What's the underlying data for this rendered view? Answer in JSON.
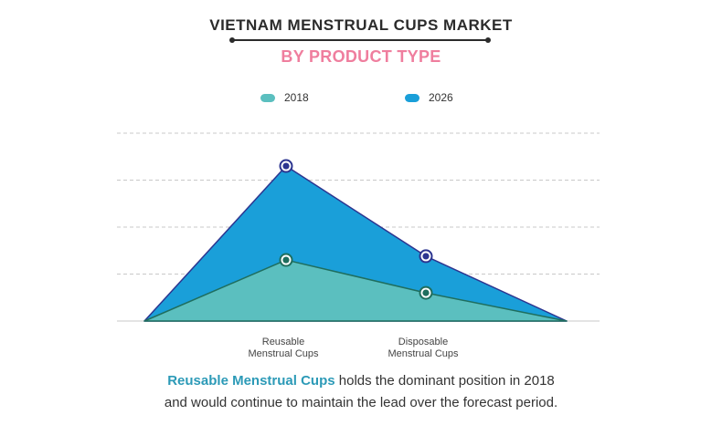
{
  "header": {
    "title": "VIETNAM MENSTRUAL CUPS MARKET",
    "subtitle": "BY PRODUCT TYPE"
  },
  "caption": {
    "highlight": "Reusable Menstrual Cups",
    "line1_rest": " holds the dominant position in 2018",
    "line2": "and would continue to maintain the lead over the forecast period."
  },
  "chart_data": {
    "type": "area",
    "categories": [
      "Reusable Menstrual Cups",
      "Disposable Menstrual Cups"
    ],
    "category_lines": [
      [
        "Reusable",
        "Menstrual Cups"
      ],
      [
        "Disposable",
        "Menstrual Cups"
      ]
    ],
    "series": [
      {
        "name": "2018",
        "values": [
          65,
          30
        ],
        "color": "#5bbfbf",
        "marker_color": "#1f6e5e"
      },
      {
        "name": "2026",
        "values": [
          165,
          69
        ],
        "color": "#1a9fd9",
        "marker_color": "#2c3590"
      }
    ],
    "ylim": [
      0,
      200
    ],
    "grid": true,
    "legend_position": "top",
    "xlabel": "",
    "ylabel": ""
  }
}
